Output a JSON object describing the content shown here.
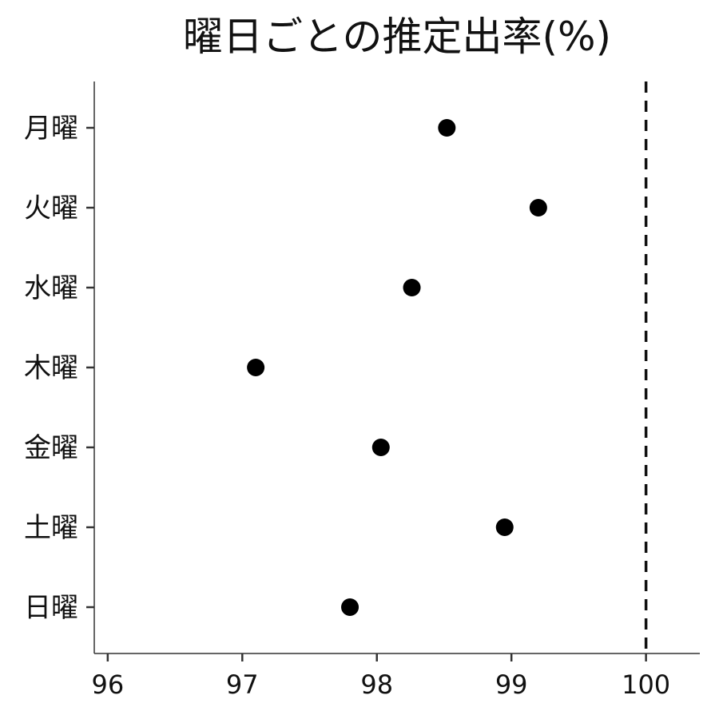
{
  "chart_data": {
    "type": "scatter",
    "title": "曜日ごとの推定出率(%)",
    "xlabel": "",
    "ylabel": "",
    "xlim": [
      95.9,
      100.4
    ],
    "x_ticks": [
      "96",
      "97",
      "98",
      "99",
      "100"
    ],
    "categories": [
      "月曜",
      "火曜",
      "水曜",
      "木曜",
      "金曜",
      "土曜",
      "日曜"
    ],
    "values": [
      98.52,
      99.2,
      98.26,
      97.1,
      98.03,
      98.95,
      97.8
    ],
    "reference_line": {
      "x": 100,
      "style": "dashed"
    },
    "point_color": "#000000",
    "grid": false,
    "legend": "none"
  }
}
